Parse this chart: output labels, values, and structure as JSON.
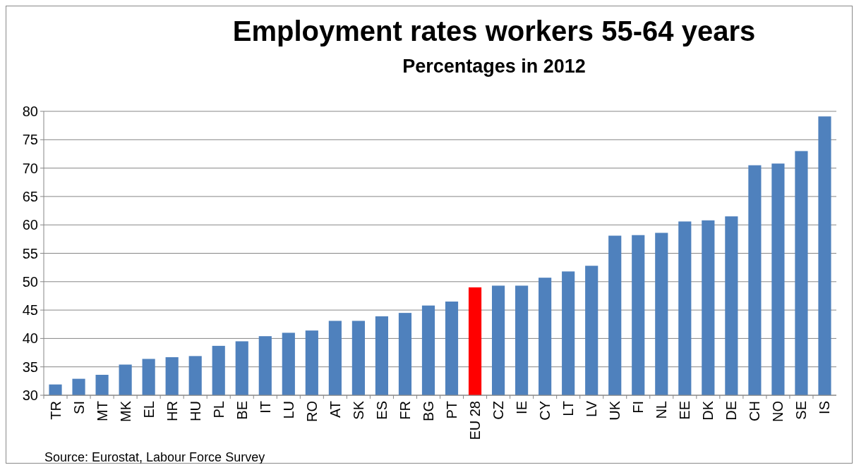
{
  "chart_data": {
    "type": "bar",
    "title": "Employment rates workers 55-64 years",
    "subtitle": "Percentages in 2012",
    "categories": [
      "TR",
      "SI",
      "MT",
      "MK",
      "EL",
      "HR",
      "HU",
      "PL",
      "BE",
      "IT",
      "LU",
      "RO",
      "AT",
      "SK",
      "ES",
      "FR",
      "BG",
      "PT",
      "EU 28",
      "CZ",
      "IE",
      "CY",
      "LT",
      "LV",
      "UK",
      "FI",
      "NL",
      "EE",
      "DK",
      "DE",
      "CH",
      "NO",
      "SE",
      "IS"
    ],
    "values": [
      31.9,
      32.9,
      33.6,
      35.4,
      36.4,
      36.7,
      36.9,
      38.7,
      39.5,
      40.4,
      41.0,
      41.4,
      43.1,
      43.1,
      43.9,
      44.5,
      45.8,
      46.5,
      49.0,
      49.3,
      49.3,
      50.7,
      51.8,
      52.8,
      58.1,
      58.2,
      58.6,
      60.6,
      60.8,
      61.5,
      70.5,
      70.8,
      73.0,
      79.1
    ],
    "colors": [
      "#4f81bd",
      "#4f81bd",
      "#4f81bd",
      "#4f81bd",
      "#4f81bd",
      "#4f81bd",
      "#4f81bd",
      "#4f81bd",
      "#4f81bd",
      "#4f81bd",
      "#4f81bd",
      "#4f81bd",
      "#4f81bd",
      "#4f81bd",
      "#4f81bd",
      "#4f81bd",
      "#4f81bd",
      "#4f81bd",
      "#ff0000",
      "#4f81bd",
      "#4f81bd",
      "#4f81bd",
      "#4f81bd",
      "#4f81bd",
      "#4f81bd",
      "#4f81bd",
      "#4f81bd",
      "#4f81bd",
      "#4f81bd",
      "#4f81bd",
      "#4f81bd",
      "#4f81bd",
      "#4f81bd",
      "#4f81bd"
    ],
    "ylim": [
      30,
      80
    ],
    "yticks": [
      30,
      35,
      40,
      45,
      50,
      55,
      60,
      65,
      70,
      75,
      80
    ],
    "grid": "y",
    "annotations": [
      "Source: Eurostat, Labour Force Survey"
    ]
  }
}
